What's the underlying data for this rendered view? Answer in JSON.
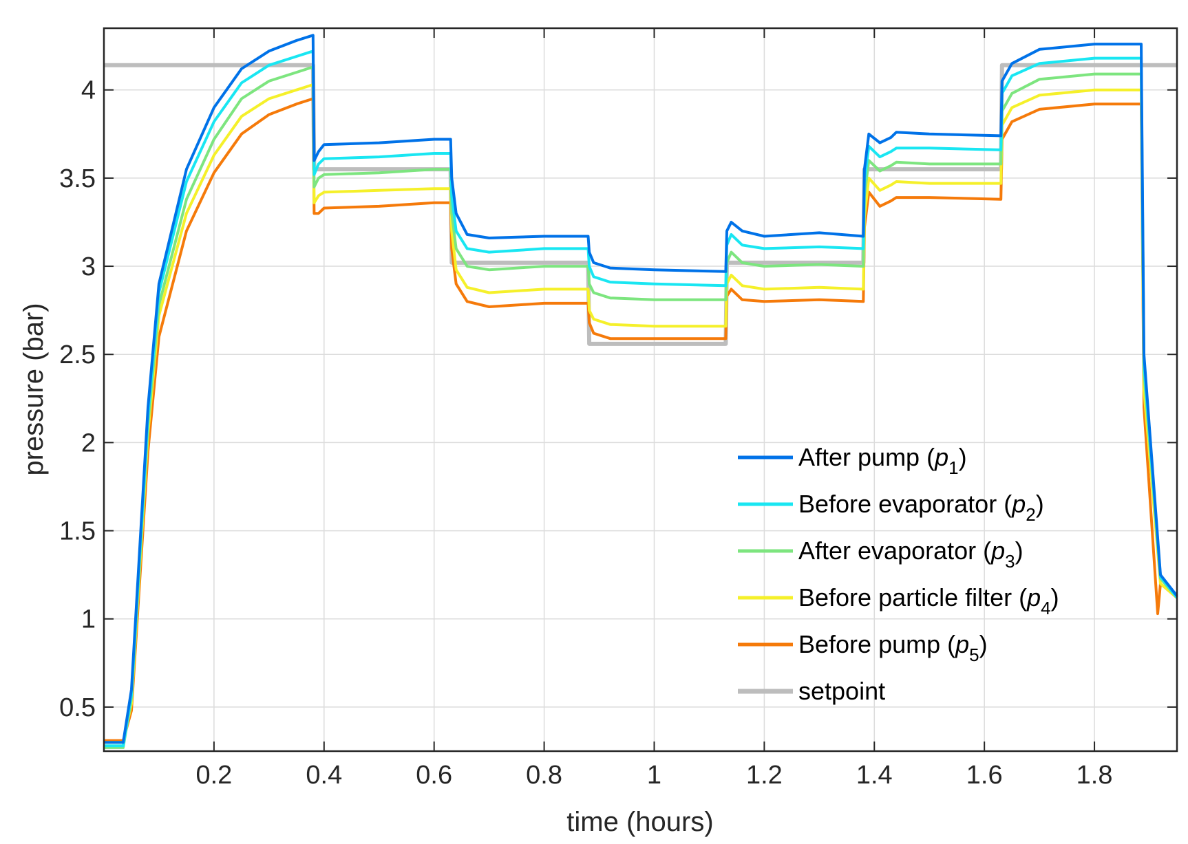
{
  "chart_data": {
    "type": "line",
    "xlabel": "time (hours)",
    "ylabel": "pressure (bar)",
    "xlim": [
      0,
      1.95
    ],
    "ylim": [
      0.25,
      4.35
    ],
    "grid": true,
    "xticks": [
      0.2,
      0.4,
      0.6,
      0.8,
      1,
      1.2,
      1.4,
      1.6,
      1.8
    ],
    "xtick_labels": [
      "0.2",
      "0.4",
      "0.6",
      "0.8",
      "1",
      "1.2",
      "1.4",
      "1.6",
      "1.8"
    ],
    "yticks": [
      0.5,
      1,
      1.5,
      2,
      2.5,
      3,
      3.5,
      4
    ],
    "ytick_labels": [
      "0.5",
      "1",
      "1.5",
      "2",
      "2.5",
      "3",
      "3.5",
      "4"
    ],
    "legend_position": "lower-right",
    "series": [
      {
        "name": "After pump",
        "var": "p",
        "sub": "1",
        "color": "#0072e8",
        "x": [
          0,
          0.035,
          0.05,
          0.08,
          0.1,
          0.15,
          0.2,
          0.25,
          0.3,
          0.35,
          0.38,
          0.382,
          0.39,
          0.4,
          0.5,
          0.6,
          0.63,
          0.632,
          0.64,
          0.66,
          0.7,
          0.8,
          0.88,
          0.882,
          0.89,
          0.92,
          1.0,
          1.13,
          1.132,
          1.14,
          1.16,
          1.2,
          1.3,
          1.38,
          1.382,
          1.39,
          1.41,
          1.43,
          1.44,
          1.5,
          1.63,
          1.632,
          1.65,
          1.7,
          1.8,
          1.885,
          1.89,
          1.92,
          1.95
        ],
        "y": [
          0.3,
          0.3,
          0.6,
          2.2,
          2.9,
          3.55,
          3.9,
          4.12,
          4.22,
          4.28,
          4.31,
          3.6,
          3.65,
          3.69,
          3.7,
          3.72,
          3.72,
          3.5,
          3.3,
          3.18,
          3.16,
          3.17,
          3.17,
          3.08,
          3.02,
          2.99,
          2.98,
          2.97,
          3.2,
          3.25,
          3.2,
          3.17,
          3.19,
          3.17,
          3.55,
          3.75,
          3.7,
          3.73,
          3.76,
          3.75,
          3.74,
          4.05,
          4.15,
          4.23,
          4.26,
          4.26,
          2.5,
          1.25,
          1.13
        ]
      },
      {
        "name": "Before evaporator",
        "var": "p",
        "sub": "2",
        "color": "#19e6f2",
        "x": [
          0,
          0.035,
          0.05,
          0.08,
          0.1,
          0.15,
          0.2,
          0.25,
          0.3,
          0.35,
          0.38,
          0.382,
          0.39,
          0.4,
          0.5,
          0.6,
          0.63,
          0.632,
          0.64,
          0.66,
          0.7,
          0.8,
          0.88,
          0.882,
          0.89,
          0.92,
          1.0,
          1.13,
          1.132,
          1.14,
          1.16,
          1.2,
          1.3,
          1.38,
          1.382,
          1.39,
          1.41,
          1.43,
          1.44,
          1.5,
          1.63,
          1.632,
          1.65,
          1.7,
          1.8,
          1.885,
          1.89,
          1.92,
          1.95
        ],
        "y": [
          0.28,
          0.28,
          0.57,
          2.15,
          2.85,
          3.48,
          3.82,
          4.04,
          4.14,
          4.19,
          4.22,
          3.52,
          3.58,
          3.61,
          3.62,
          3.64,
          3.64,
          3.4,
          3.2,
          3.1,
          3.08,
          3.1,
          3.1,
          3.0,
          2.94,
          2.91,
          2.9,
          2.89,
          3.12,
          3.18,
          3.12,
          3.1,
          3.11,
          3.1,
          3.48,
          3.68,
          3.62,
          3.65,
          3.67,
          3.67,
          3.66,
          3.98,
          4.08,
          4.15,
          4.18,
          4.18,
          2.45,
          1.24,
          1.12
        ]
      },
      {
        "name": "After evaporator",
        "var": "p",
        "sub": "3",
        "color": "#7de57f",
        "x": [
          0,
          0.035,
          0.05,
          0.08,
          0.1,
          0.15,
          0.2,
          0.25,
          0.3,
          0.35,
          0.38,
          0.382,
          0.39,
          0.4,
          0.5,
          0.6,
          0.63,
          0.632,
          0.64,
          0.66,
          0.7,
          0.8,
          0.88,
          0.882,
          0.89,
          0.92,
          1.0,
          1.13,
          1.132,
          1.14,
          1.16,
          1.2,
          1.3,
          1.38,
          1.382,
          1.39,
          1.41,
          1.43,
          1.44,
          1.5,
          1.63,
          1.632,
          1.65,
          1.7,
          1.8,
          1.885,
          1.89,
          1.92,
          1.95
        ],
        "y": [
          0.27,
          0.27,
          0.55,
          2.1,
          2.78,
          3.38,
          3.72,
          3.95,
          4.05,
          4.1,
          4.13,
          3.45,
          3.5,
          3.52,
          3.53,
          3.55,
          3.55,
          3.3,
          3.1,
          3.0,
          2.98,
          3.0,
          3.0,
          2.9,
          2.85,
          2.82,
          2.81,
          2.81,
          3.02,
          3.08,
          3.02,
          3.0,
          3.01,
          3.0,
          3.4,
          3.6,
          3.54,
          3.57,
          3.59,
          3.58,
          3.58,
          3.88,
          3.98,
          4.06,
          4.09,
          4.09,
          2.4,
          1.23,
          1.12
        ]
      },
      {
        "name": "Before particle filter",
        "var": "p",
        "sub": "4",
        "color": "#f5f02a",
        "x": [
          0,
          0.035,
          0.05,
          0.08,
          0.1,
          0.15,
          0.2,
          0.25,
          0.3,
          0.35,
          0.38,
          0.382,
          0.39,
          0.4,
          0.5,
          0.6,
          0.63,
          0.632,
          0.64,
          0.66,
          0.7,
          0.8,
          0.88,
          0.882,
          0.89,
          0.92,
          1.0,
          1.13,
          1.132,
          1.14,
          1.16,
          1.2,
          1.3,
          1.38,
          1.382,
          1.39,
          1.41,
          1.43,
          1.44,
          1.5,
          1.63,
          1.632,
          1.65,
          1.7,
          1.8,
          1.885,
          1.89,
          1.92,
          1.95
        ],
        "y": [
          0.3,
          0.3,
          0.52,
          2.05,
          2.72,
          3.3,
          3.63,
          3.85,
          3.95,
          4.0,
          4.03,
          3.36,
          3.4,
          3.42,
          3.43,
          3.44,
          3.44,
          3.2,
          2.98,
          2.88,
          2.85,
          2.87,
          2.87,
          2.75,
          2.7,
          2.67,
          2.66,
          2.66,
          2.9,
          2.95,
          2.89,
          2.87,
          2.88,
          2.87,
          3.28,
          3.5,
          3.43,
          3.46,
          3.48,
          3.47,
          3.47,
          3.8,
          3.9,
          3.97,
          4.0,
          4.0,
          2.3,
          1.2,
          1.12
        ]
      },
      {
        "name": "Before pump",
        "var": "p",
        "sub": "5",
        "color": "#f57a0a",
        "x": [
          0,
          0.035,
          0.05,
          0.08,
          0.1,
          0.15,
          0.2,
          0.25,
          0.3,
          0.35,
          0.38,
          0.382,
          0.39,
          0.4,
          0.5,
          0.6,
          0.63,
          0.632,
          0.64,
          0.66,
          0.7,
          0.8,
          0.88,
          0.882,
          0.89,
          0.92,
          1.0,
          1.13,
          1.132,
          1.14,
          1.16,
          1.2,
          1.3,
          1.38,
          1.382,
          1.39,
          1.41,
          1.43,
          1.44,
          1.5,
          1.63,
          1.632,
          1.65,
          1.7,
          1.8,
          1.885,
          1.89,
          1.915,
          1.92,
          1.95
        ],
        "y": [
          0.31,
          0.31,
          0.48,
          1.95,
          2.6,
          3.2,
          3.53,
          3.75,
          3.86,
          3.92,
          3.95,
          3.3,
          3.3,
          3.33,
          3.34,
          3.36,
          3.36,
          3.1,
          2.9,
          2.8,
          2.77,
          2.79,
          2.79,
          2.68,
          2.62,
          2.59,
          2.59,
          2.59,
          2.83,
          2.87,
          2.81,
          2.8,
          2.81,
          2.8,
          3.22,
          3.42,
          3.34,
          3.37,
          3.39,
          3.39,
          3.38,
          3.72,
          3.82,
          3.89,
          3.92,
          3.92,
          2.2,
          1.03,
          1.2,
          1.12
        ]
      },
      {
        "name": "setpoint",
        "var": "",
        "sub": "",
        "color": "#bdbdbd",
        "x": [
          0,
          0.38,
          0.382,
          0.63,
          0.632,
          0.88,
          0.882,
          1.13,
          1.132,
          1.38,
          1.382,
          1.63,
          1.632,
          1.95
        ],
        "y": [
          4.14,
          4.14,
          3.55,
          3.55,
          3.02,
          3.02,
          2.56,
          2.56,
          3.02,
          3.02,
          3.55,
          3.55,
          4.14,
          4.14
        ]
      }
    ]
  }
}
